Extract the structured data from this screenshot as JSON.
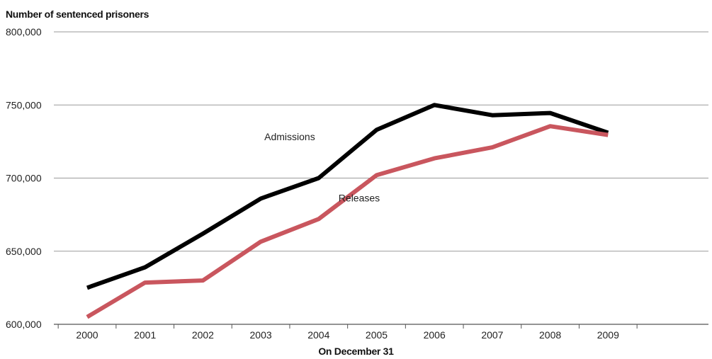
{
  "chart_data": {
    "type": "line",
    "title": "",
    "ylabel": "Number of sentenced prisoners",
    "xlabel": "On December 31",
    "categories": [
      "2000",
      "2001",
      "2002",
      "2003",
      "2004",
      "2005",
      "2006",
      "2007",
      "2008",
      "2009"
    ],
    "ylim": [
      600000,
      800000
    ],
    "yticks": [
      600000,
      650000,
      700000,
      750000,
      800000
    ],
    "ytick_labels": [
      "600,000",
      "650,000",
      "700,000",
      "750,000",
      "800,000"
    ],
    "grid": true,
    "legend": "none",
    "series": [
      {
        "name": "Admissions",
        "color": "#000000",
        "values": [
          625000,
          639000,
          662000,
          686000,
          700000,
          733000,
          750000,
          743000,
          744500,
          731000
        ]
      },
      {
        "name": "Releases",
        "color": "#c9565e",
        "values": [
          605000,
          628500,
          630000,
          656500,
          672000,
          702000,
          713500,
          721000,
          735500,
          729500
        ]
      }
    ],
    "annotations": [
      {
        "text": "Admissions",
        "x": "2003.5",
        "y": 726000
      },
      {
        "text": "Releases",
        "x": "2004.7",
        "y": 684000
      }
    ]
  }
}
